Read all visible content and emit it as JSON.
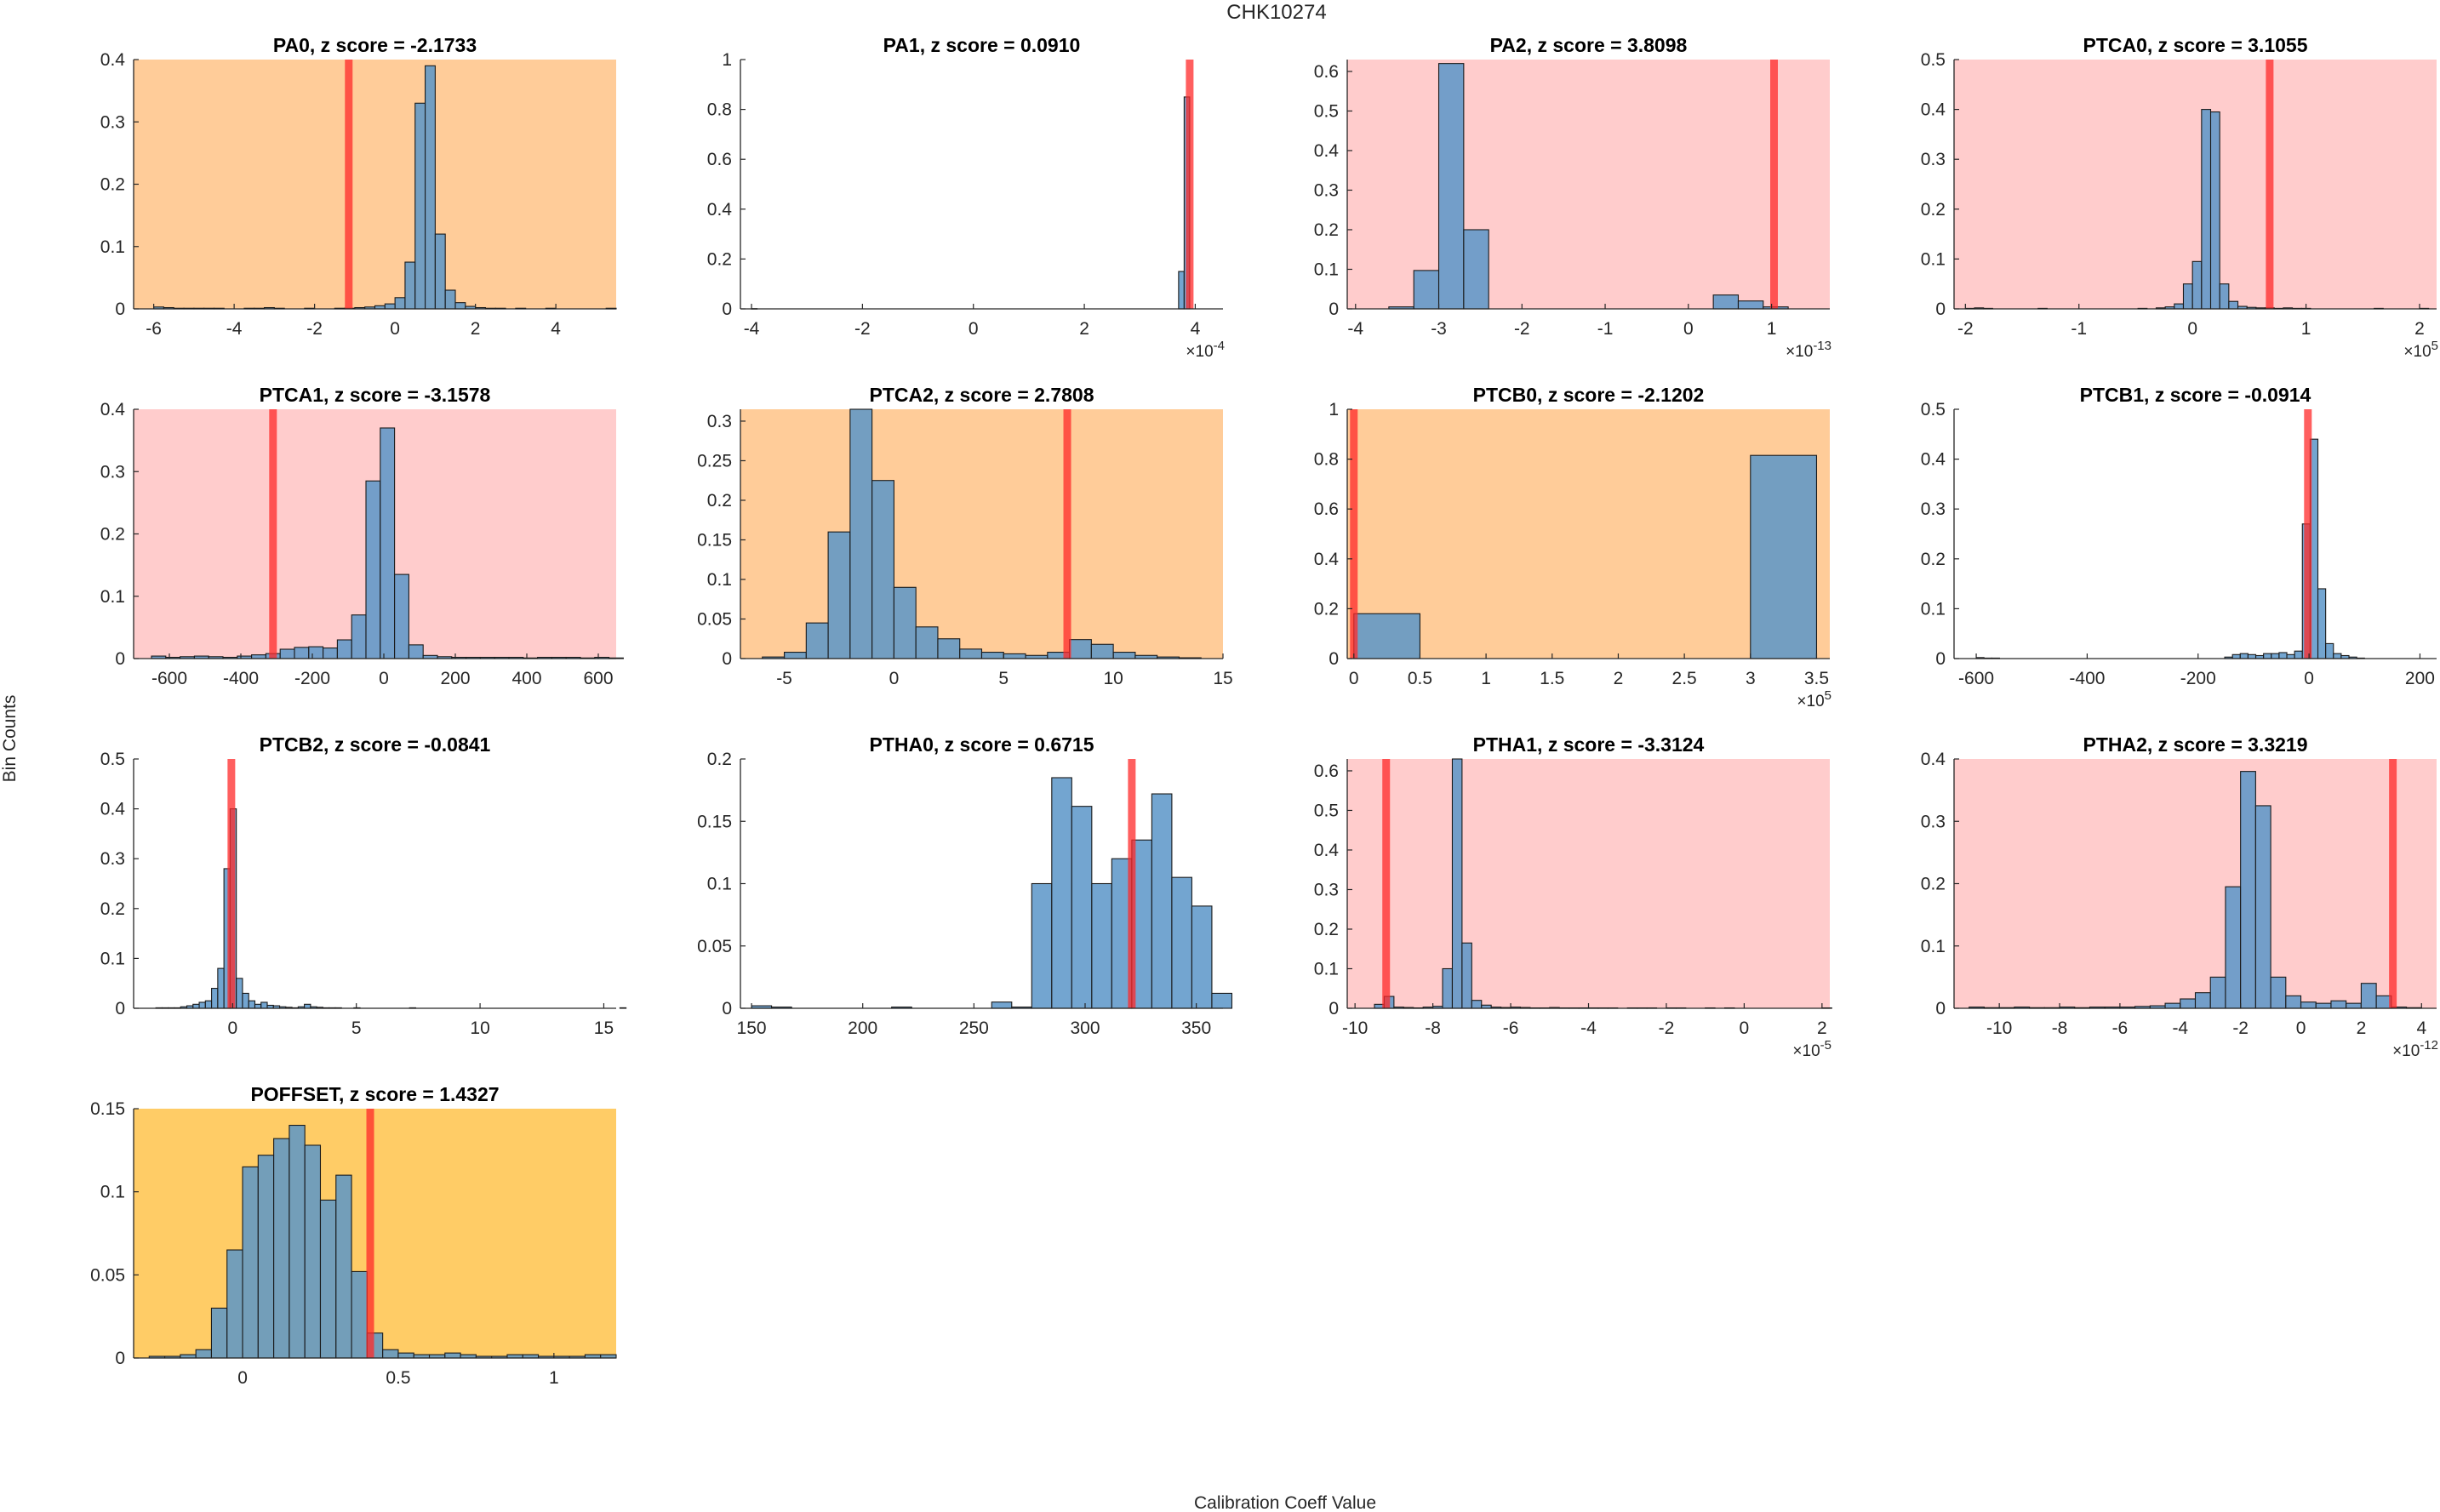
{
  "figure": {
    "title": "CHK10274",
    "xlabel": "Calibration Coeff Value",
    "ylabel": "Bin Counts"
  },
  "colors": {
    "bar": "#5b95c8",
    "bar_edge": "#1a1a1a",
    "marker": "#ff2a2a",
    "bg_red": "#ffcccc",
    "bg_orange": "#ffcc99",
    "bg_yellow": "#ffcc66",
    "bg_white": "#ffffff"
  },
  "chart_data": [
    {
      "type": "bar",
      "title": "PA0, z score = -2.1733",
      "bg": "orange",
      "xlim": [
        -6.5,
        5.5
      ],
      "ylim": [
        0,
        0.4
      ],
      "xticks": [
        -6,
        -4,
        -2,
        0,
        2,
        4
      ],
      "xticklabels": [
        "-6",
        "-4",
        "-2",
        "0",
        "2",
        "4"
      ],
      "yticks": [
        0,
        0.1,
        0.2,
        0.3,
        0.4
      ],
      "yticklabels": [
        "0",
        "0.1",
        "0.2",
        "0.3",
        "0.4"
      ],
      "bin_start": -6.0,
      "bin_width": 0.25,
      "values": [
        0.003,
        0.002,
        0.001,
        0.001,
        0.001,
        0.001,
        0.001,
        0,
        0,
        0.001,
        0.001,
        0.002,
        0.001,
        0,
        0,
        0.001,
        0,
        0,
        0.001,
        0.001,
        0.002,
        0.003,
        0.005,
        0.008,
        0.018,
        0.075,
        0.33,
        0.39,
        0.12,
        0.03,
        0.01,
        0.004,
        0.002,
        0.001,
        0.001,
        0,
        0.001,
        0,
        0,
        0.001,
        0,
        0,
        0,
        0,
        0,
        0.001
      ],
      "marker": -1.15,
      "exponent": ""
    },
    {
      "type": "bar",
      "title": "PA1, z score = 0.0910",
      "bg": "white",
      "xlim": [
        -4.2,
        4.5
      ],
      "ylim": [
        0,
        1
      ],
      "xticks": [
        -4,
        -2,
        0,
        2,
        4
      ],
      "xticklabels": [
        "-4",
        "-2",
        "0",
        "2",
        "4"
      ],
      "yticks": [
        0,
        0.2,
        0.4,
        0.6,
        0.8,
        1
      ],
      "yticklabels": [
        "0",
        "0.2",
        "0.4",
        "0.6",
        "0.8",
        "1"
      ],
      "bin_start": -4.0,
      "bin_width": 0.1,
      "values": [
        0.001,
        0,
        0,
        0,
        0,
        0,
        0,
        0,
        0,
        0,
        0,
        0,
        0,
        0,
        0,
        0,
        0,
        0,
        0,
        0,
        0,
        0,
        0,
        0,
        0,
        0,
        0,
        0,
        0,
        0,
        0,
        0,
        0,
        0,
        0,
        0,
        0,
        0,
        0,
        0,
        0,
        0,
        0,
        0,
        0,
        0,
        0,
        0,
        0,
        0,
        0,
        0,
        0,
        0,
        0,
        0,
        0,
        0,
        0,
        0,
        0,
        0,
        0,
        0,
        0,
        0,
        0,
        0,
        0,
        0,
        0,
        0,
        0,
        0,
        0,
        0,
        0,
        0.15,
        0.85
      ],
      "marker": 3.9,
      "exponent": "×10",
      "exponent_power": "-4"
    },
    {
      "type": "bar",
      "title": "PA2, z score = 3.8098",
      "bg": "red",
      "xlim": [
        -4.1,
        1.7
      ],
      "ylim": [
        0,
        0.63
      ],
      "xticks": [
        -4,
        -3,
        -2,
        -1,
        0,
        1
      ],
      "xticklabels": [
        "-4",
        "-3",
        "-2",
        "-1",
        "0",
        "1"
      ],
      "yticks": [
        0,
        0.1,
        0.2,
        0.3,
        0.4,
        0.5,
        0.6
      ],
      "yticklabels": [
        "0",
        "0.1",
        "0.2",
        "0.3",
        "0.4",
        "0.5",
        "0.6"
      ],
      "bin_start": -3.6,
      "bin_width": 0.3,
      "values": [
        0.005,
        0.097,
        0.62,
        0.2,
        0,
        0,
        0,
        0,
        0,
        0,
        0,
        0,
        0,
        0.035,
        0.02,
        0.005
      ],
      "marker": 1.03,
      "exponent": "×10",
      "exponent_power": "-13"
    },
    {
      "type": "bar",
      "title": "PTCA0, z score = 3.1055",
      "bg": "red",
      "xlim": [
        -2.1,
        2.15
      ],
      "ylim": [
        0,
        0.5
      ],
      "xticks": [
        -2,
        -1,
        0,
        1,
        2
      ],
      "xticklabels": [
        "-2",
        "-1",
        "0",
        "1",
        "2"
      ],
      "yticks": [
        0,
        0.1,
        0.2,
        0.3,
        0.4,
        0.5
      ],
      "yticklabels": [
        "0",
        "0.1",
        "0.2",
        "0.3",
        "0.4",
        "0.5"
      ],
      "bin_start": -2.0,
      "bin_width": 0.08,
      "values": [
        0.001,
        0.002,
        0.001,
        0,
        0,
        0,
        0,
        0,
        0.001,
        0,
        0,
        0,
        0,
        0,
        0,
        0,
        0,
        0,
        0,
        0.001,
        0,
        0.002,
        0.004,
        0.01,
        0.05,
        0.095,
        0.4,
        0.395,
        0.05,
        0.015,
        0.005,
        0.003,
        0.002,
        0.002,
        0.001,
        0.002,
        0.001,
        0.001,
        0,
        0,
        0,
        0,
        0,
        0,
        0,
        0.001,
        0,
        0,
        0,
        0,
        0.001
      ],
      "marker": 0.68,
      "exponent": "×10",
      "exponent_power": "5"
    },
    {
      "type": "bar",
      "title": "PTCA1, z score = -3.1578",
      "bg": "red",
      "xlim": [
        -700,
        650
      ],
      "ylim": [
        0,
        0.4
      ],
      "xticks": [
        -600,
        -400,
        -200,
        0,
        200,
        400,
        600
      ],
      "xticklabels": [
        "-600",
        "-400",
        "-200",
        "0",
        "200",
        "400",
        "600"
      ],
      "yticks": [
        0,
        0.1,
        0.2,
        0.3,
        0.4
      ],
      "yticklabels": [
        "0",
        "0.1",
        "0.2",
        "0.3",
        "0.4"
      ],
      "bin_start": -650,
      "bin_width": 40,
      "values": [
        0.004,
        0.002,
        0.003,
        0.004,
        0.003,
        0.002,
        0.004,
        0.006,
        0.008,
        0.015,
        0.018,
        0.019,
        0.017,
        0.03,
        0.07,
        0.285,
        0.37,
        0.135,
        0.022,
        0.005,
        0.003,
        0.002,
        0.002,
        0.002,
        0.002,
        0.002,
        0.001,
        0.002,
        0.002,
        0.002,
        0.001,
        0.002,
        0.001
      ],
      "marker": -310,
      "exponent": ""
    },
    {
      "type": "bar",
      "title": "PTCA2, z score = 2.7808",
      "bg": "orange",
      "xlim": [
        -7,
        15
      ],
      "ylim": [
        0,
        0.315
      ],
      "xticks": [
        -5,
        0,
        5,
        10,
        15
      ],
      "xticklabels": [
        "-5",
        "0",
        "5",
        "10",
        "15"
      ],
      "yticks": [
        0,
        0.05,
        0.1,
        0.15,
        0.2,
        0.25,
        0.3
      ],
      "yticklabels": [
        "0",
        "0.05",
        "0.1",
        "0.15",
        "0.2",
        "0.25",
        "0.3"
      ],
      "bin_start": -6.0,
      "bin_width": 1.0,
      "values": [
        0.002,
        0.008,
        0.045,
        0.16,
        0.315,
        0.225,
        0.09,
        0.04,
        0.025,
        0.012,
        0.008,
        0.006,
        0.004,
        0.008,
        0.024,
        0.018,
        0.008,
        0.004,
        0.002,
        0.001
      ],
      "marker": 7.9,
      "exponent": ""
    },
    {
      "type": "bar",
      "title": "PTCB0, z score = -2.1202",
      "bg": "orange",
      "xlim": [
        -0.05,
        3.6
      ],
      "ylim": [
        0,
        1
      ],
      "xticks": [
        0,
        0.5,
        1,
        1.5,
        2,
        2.5,
        3,
        3.5
      ],
      "xticklabels": [
        "0",
        "0.5",
        "1",
        "1.5",
        "2",
        "2.5",
        "3",
        "3.5"
      ],
      "yticks": [
        0,
        0.2,
        0.4,
        0.6,
        0.8,
        1
      ],
      "yticklabels": [
        "0",
        "0.2",
        "0.4",
        "0.6",
        "0.8",
        "1"
      ],
      "bin_start": 0.0,
      "bin_width": 0.5,
      "values": [
        0.18,
        0,
        0,
        0,
        0,
        0,
        0.815
      ],
      "marker": 0.0,
      "exponent": "×10",
      "exponent_power": "5"
    },
    {
      "type": "bar",
      "title": "PTCB1, z score = -0.0914",
      "bg": "white",
      "xlim": [
        -640,
        230
      ],
      "ylim": [
        0,
        0.5
      ],
      "xticks": [
        -600,
        -400,
        -200,
        0,
        200
      ],
      "xticklabels": [
        "-600",
        "-400",
        "-200",
        "0",
        "200"
      ],
      "yticks": [
        0,
        0.1,
        0.2,
        0.3,
        0.4,
        0.5
      ],
      "yticklabels": [
        "0",
        "0.1",
        "0.2",
        "0.3",
        "0.4",
        "0.5"
      ],
      "bin_start": -600,
      "bin_width": 14,
      "values": [
        0.002,
        0.001,
        0.001,
        0,
        0,
        0,
        0,
        0,
        0,
        0,
        0,
        0,
        0,
        0,
        0,
        0,
        0,
        0,
        0,
        0,
        0,
        0,
        0,
        0,
        0,
        0,
        0,
        0,
        0,
        0,
        0,
        0,
        0.003,
        0.008,
        0.01,
        0.008,
        0.006,
        0.01,
        0.01,
        0.012,
        0.008,
        0.015,
        0.27,
        0.44,
        0.14,
        0.03,
        0.01,
        0.006,
        0.003,
        0.001
      ],
      "marker": -2,
      "exponent": ""
    },
    {
      "type": "bar",
      "title": "PTCB2, z score = -0.0841",
      "bg": "white",
      "xlim": [
        -4,
        15.5
      ],
      "ylim": [
        0,
        0.5
      ],
      "xticks": [
        0,
        5,
        10,
        15
      ],
      "xticklabels": [
        "0",
        "5",
        "10",
        "15"
      ],
      "yticks": [
        0,
        0.1,
        0.2,
        0.3,
        0.4,
        0.5
      ],
      "yticklabels": [
        "0",
        "0.1",
        "0.2",
        "0.3",
        "0.4",
        "0.5"
      ],
      "bin_start": -3.1,
      "bin_width": 0.25,
      "values": [
        0.001,
        0.001,
        0.001,
        0.001,
        0.003,
        0.005,
        0.008,
        0.012,
        0.015,
        0.04,
        0.08,
        0.28,
        0.4,
        0.06,
        0.03,
        0.015,
        0.008,
        0.012,
        0.006,
        0.005,
        0.003,
        0.002,
        0.001,
        0.003,
        0.008,
        0.003,
        0.002,
        0.001,
        0.001,
        0.001,
        0,
        0,
        0.001,
        0,
        0,
        0,
        0,
        0,
        0,
        0,
        0,
        0.001,
        0,
        0,
        0,
        0,
        0,
        0,
        0,
        0,
        0,
        0,
        0,
        0,
        0,
        0,
        0,
        0,
        0,
        0,
        0,
        0,
        0,
        0,
        0,
        0,
        0,
        0,
        0,
        0,
        0,
        0,
        0,
        0,
        0,
        0.001
      ],
      "marker": -0.05,
      "exponent": ""
    },
    {
      "type": "bar",
      "title": "PTHA0, z score = 0.6715",
      "bg": "white",
      "xlim": [
        145,
        362
      ],
      "ylim": [
        0,
        0.2
      ],
      "xticks": [
        150,
        200,
        250,
        300,
        350
      ],
      "xticklabels": [
        "150",
        "200",
        "250",
        "300",
        "350"
      ],
      "yticks": [
        0,
        0.05,
        0.1,
        0.15,
        0.2
      ],
      "yticklabels": [
        "0",
        "0.05",
        "0.1",
        "0.15",
        "0.2"
      ],
      "bin_start": 150,
      "bin_width": 9,
      "values": [
        0.002,
        0.001,
        0,
        0,
        0,
        0,
        0,
        0.001,
        0,
        0,
        0,
        0,
        0.005,
        0.001,
        0.1,
        0.185,
        0.162,
        0.1,
        0.12,
        0.135,
        0.172,
        0.105,
        0.082,
        0.012
      ],
      "marker": 321,
      "exponent": ""
    },
    {
      "type": "bar",
      "title": "PTHA1, z score = -3.3124",
      "bg": "red",
      "xlim": [
        -10.2,
        2.2
      ],
      "ylim": [
        0,
        0.63
      ],
      "xticks": [
        -10,
        -8,
        -6,
        -4,
        -2,
        0,
        2
      ],
      "xticklabels": [
        "-10",
        "-8",
        "-6",
        "-4",
        "-2",
        "0",
        "2"
      ],
      "yticks": [
        0,
        0.1,
        0.2,
        0.3,
        0.4,
        0.5,
        0.6
      ],
      "yticklabels": [
        "0",
        "0.1",
        "0.2",
        "0.3",
        "0.4",
        "0.5",
        "0.6"
      ],
      "bin_start": -9.5,
      "bin_width": 0.25,
      "values": [
        0.01,
        0.03,
        0.003,
        0.002,
        0.001,
        0.003,
        0.005,
        0.1,
        0.63,
        0.165,
        0.02,
        0.008,
        0.003,
        0.002,
        0.003,
        0.002,
        0.001,
        0.001,
        0.002,
        0.001,
        0.001,
        0.001,
        0.001,
        0.001,
        0.001,
        0,
        0.001,
        0.001,
        0.001,
        0,
        0.001,
        0.001,
        0,
        0,
        0.001,
        0,
        0.001,
        0,
        0,
        0,
        0,
        0,
        0,
        0,
        0,
        0,
        0.001
      ],
      "marker": -9.2,
      "exponent": "×10",
      "exponent_power": "-5"
    },
    {
      "type": "bar",
      "title": "PTHA2, z score = 3.3219",
      "bg": "red",
      "xlim": [
        -11.5,
        4.5
      ],
      "ylim": [
        0,
        0.4
      ],
      "xticks": [
        -10,
        -8,
        -6,
        -4,
        -2,
        0,
        2,
        4
      ],
      "xticklabels": [
        "-10",
        "-8",
        "-6",
        "-4",
        "-2",
        "0",
        "2",
        "4"
      ],
      "yticks": [
        0,
        0.1,
        0.2,
        0.3,
        0.4
      ],
      "yticklabels": [
        "0",
        "0.1",
        "0.2",
        "0.3",
        "0.4"
      ],
      "bin_start": -11,
      "bin_width": 0.5,
      "values": [
        0.002,
        0.001,
        0.001,
        0.002,
        0.001,
        0.001,
        0.002,
        0.001,
        0.002,
        0.002,
        0.002,
        0.003,
        0.004,
        0.008,
        0.015,
        0.025,
        0.05,
        0.195,
        0.38,
        0.325,
        0.05,
        0.02,
        0.01,
        0.008,
        0.012,
        0.008,
        0.04,
        0.02,
        0.002,
        0.001
      ],
      "marker": 3.05,
      "exponent": "×10",
      "exponent_power": "-12"
    },
    {
      "type": "bar",
      "title": "POFFSET, z score = 1.4327",
      "bg": "yellow",
      "xlim": [
        -0.35,
        1.2
      ],
      "ylim": [
        0,
        0.15
      ],
      "xticks": [
        0,
        0.5,
        1
      ],
      "xticklabels": [
        "0",
        "0.5",
        "1"
      ],
      "yticks": [
        0,
        0.05,
        0.1,
        0.15
      ],
      "yticklabels": [
        "0",
        "0.05",
        "0.1",
        "0.15"
      ],
      "bin_start": -0.3,
      "bin_width": 0.05,
      "values": [
        0.001,
        0.001,
        0.002,
        0.005,
        0.03,
        0.065,
        0.115,
        0.122,
        0.132,
        0.14,
        0.128,
        0.095,
        0.11,
        0.052,
        0.015,
        0.005,
        0.003,
        0.002,
        0.002,
        0.003,
        0.002,
        0.001,
        0.001,
        0.002,
        0.002,
        0.001,
        0.001,
        0.001,
        0.002,
        0.002
      ],
      "marker": 0.41,
      "exponent": ""
    }
  ]
}
